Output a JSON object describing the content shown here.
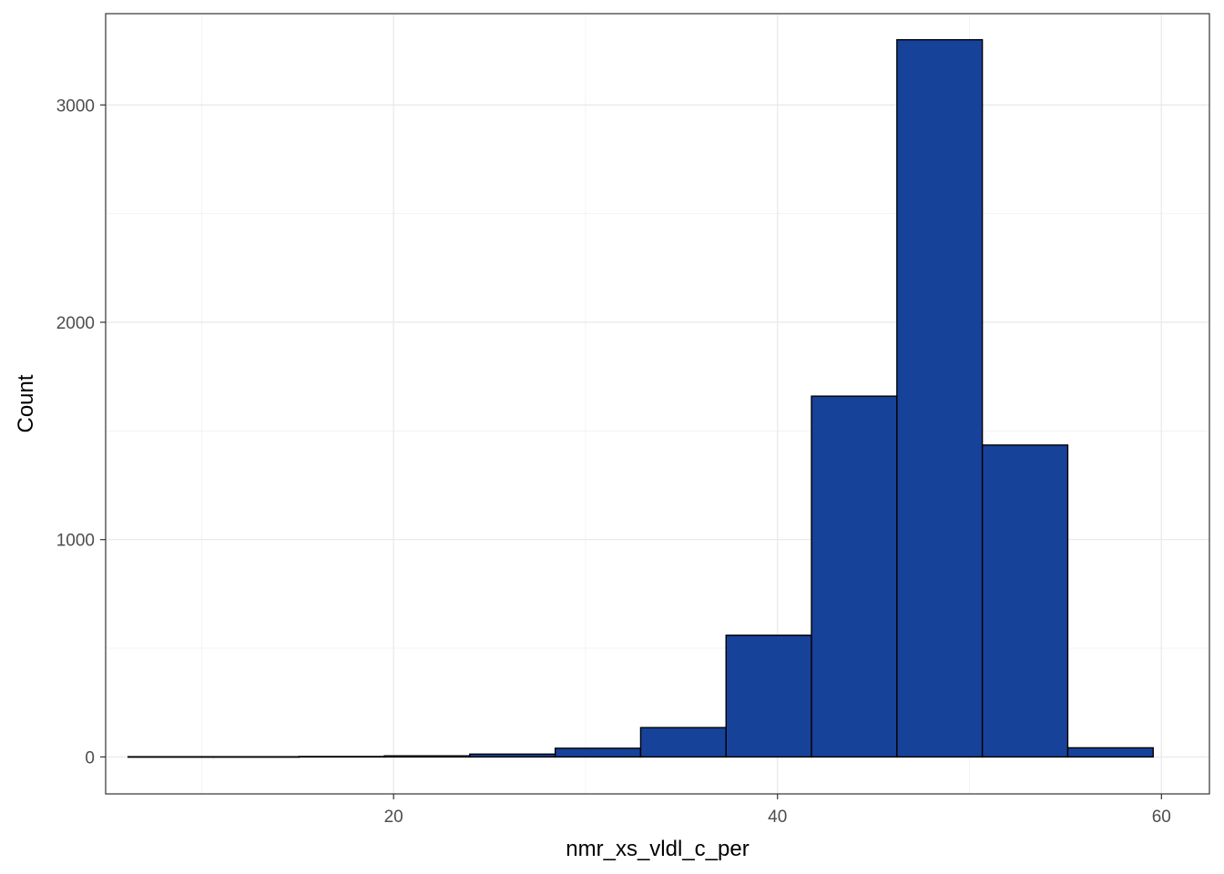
{
  "chart_data": {
    "type": "bar",
    "subtype": "histogram",
    "xlabel": "nmr_xs_vldl_c_per",
    "ylabel": "Count",
    "xlim": [
      5.0,
      62.5
    ],
    "ylim": [
      -170,
      3420
    ],
    "x_ticks": [
      20,
      40,
      60
    ],
    "y_ticks": [
      0,
      1000,
      2000,
      3000
    ],
    "grid": true,
    "bins": [
      {
        "x0": 6.17,
        "x1": 10.62,
        "count": 1
      },
      {
        "x0": 10.62,
        "x1": 15.07,
        "count": 1
      },
      {
        "x0": 15.07,
        "x1": 19.52,
        "count": 2
      },
      {
        "x0": 19.52,
        "x1": 23.97,
        "count": 5
      },
      {
        "x0": 23.97,
        "x1": 28.42,
        "count": 13
      },
      {
        "x0": 28.42,
        "x1": 32.87,
        "count": 40
      },
      {
        "x0": 32.87,
        "x1": 37.32,
        "count": 135
      },
      {
        "x0": 37.32,
        "x1": 41.77,
        "count": 560
      },
      {
        "x0": 41.77,
        "x1": 46.22,
        "count": 1660
      },
      {
        "x0": 46.22,
        "x1": 50.67,
        "count": 3300
      },
      {
        "x0": 50.67,
        "x1": 55.12,
        "count": 1435
      },
      {
        "x0": 55.12,
        "x1": 59.57,
        "count": 42
      }
    ],
    "colors": {
      "fill": "#17429a",
      "stroke": "#000000",
      "grid_major": "#ebebeb",
      "grid_minor": "#f3f3f3",
      "panel_border": "#333333",
      "tick_text": "#4d4d4d"
    }
  }
}
